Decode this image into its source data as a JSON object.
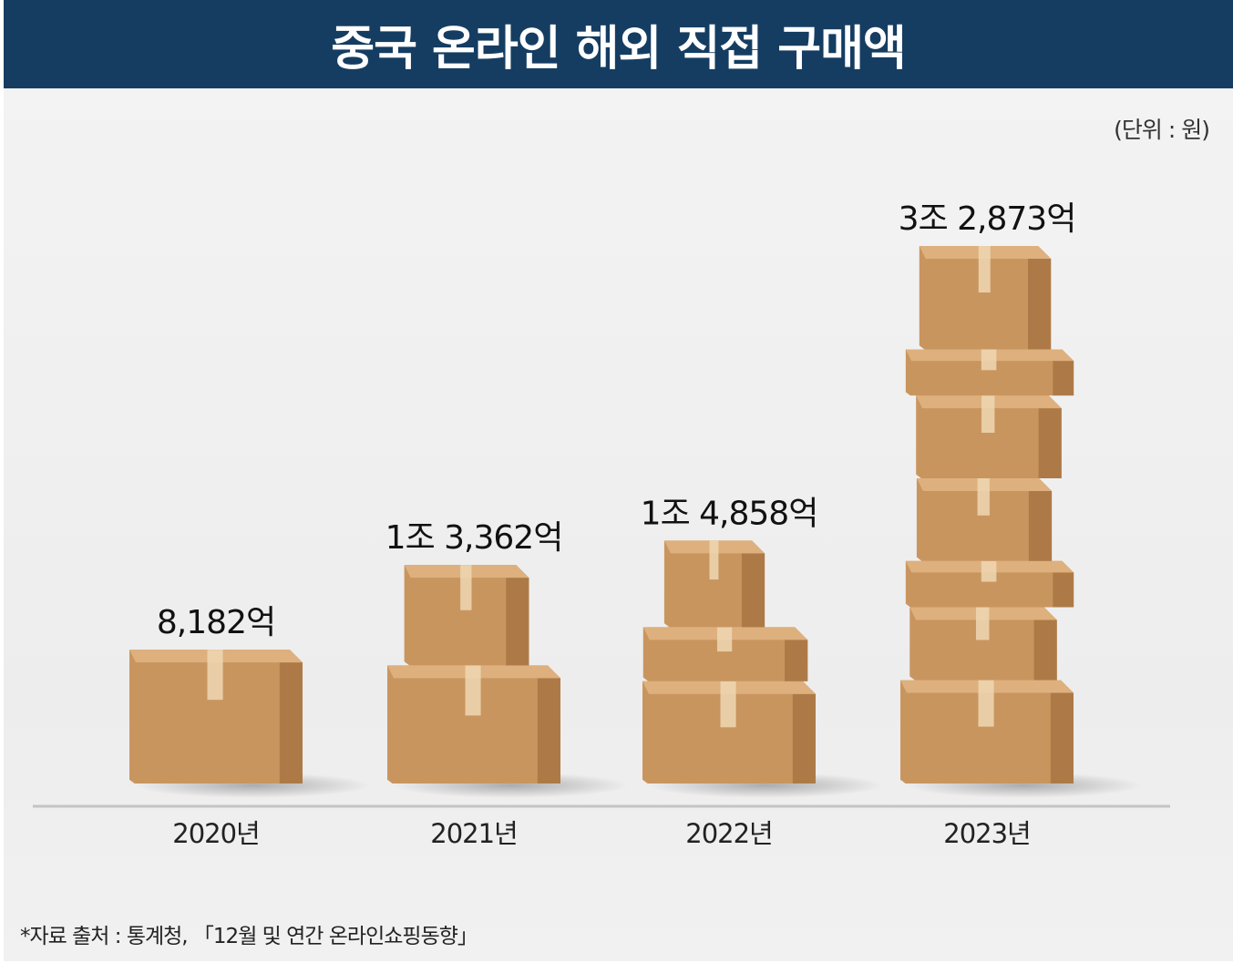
{
  "header": {
    "title": "중국 온라인 해외 직접 구매액"
  },
  "unit_label": "(단위 : 원)",
  "source": "*자료 출처 : 통계청, 「12월 및 연간 온라인쇼핑동향」",
  "colors": {
    "header_bg": "#153d62",
    "box_front": "#c9955f",
    "box_side": "#ad7a47",
    "box_top": "#ddb07d",
    "tape": "#eed7b3",
    "axis": "#c4c4c4"
  },
  "chart_data": {
    "type": "bar",
    "title": "중국 온라인 해외 직접 구매액",
    "unit": "원",
    "categories": [
      "2020년",
      "2021년",
      "2022년",
      "2023년"
    ],
    "values": [
      8182,
      13362,
      14858,
      32873
    ],
    "value_unit": "억 원",
    "data_labels": [
      "8,182억",
      "1조 3,362억",
      "1조 4,858억",
      "3조 2,873억"
    ],
    "xlabel": "",
    "ylabel": "",
    "grid": false,
    "legend": "none"
  }
}
